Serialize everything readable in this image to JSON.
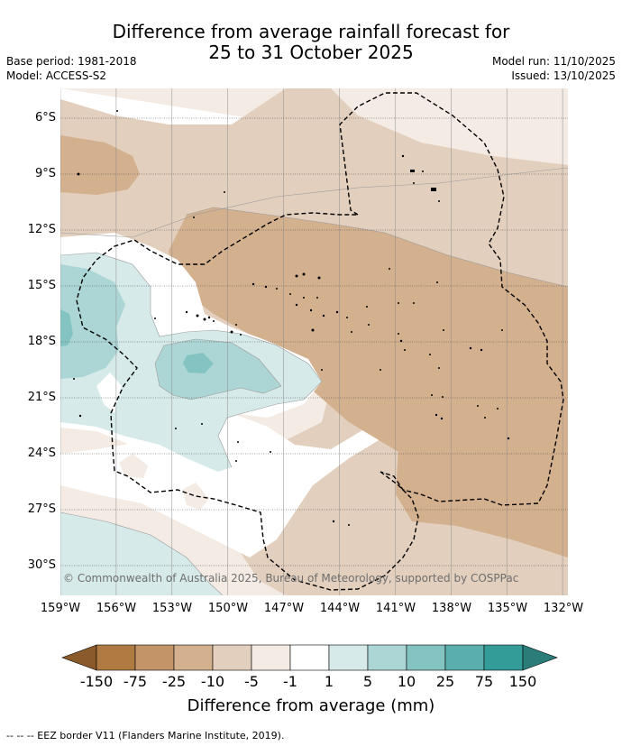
{
  "title_line1": "Difference from average rainfall forecast for",
  "title_line2": "25 to 31 October 2025",
  "base_period": "Base period: 1981-2018",
  "model": "Model: ACCESS-S2",
  "model_run": "Model run: 11/10/2025",
  "issued": "Issued: 13/10/2025",
  "lat_ticks": [
    "6°S",
    "9°S",
    "12°S",
    "15°S",
    "18°S",
    "21°S",
    "24°S",
    "27°S",
    "30°S"
  ],
  "lon_ticks": [
    "159°W",
    "156°W",
    "153°W",
    "150°W",
    "147°W",
    "144°W",
    "141°W",
    "138°W",
    "135°W",
    "132°W"
  ],
  "copyright": "© Commonwealth of Australia 2025, Bureau of Meteorology, supported by COSPPac",
  "colorbar": {
    "labels": [
      "-150",
      "-75",
      "-25",
      "-10",
      "-5",
      "-1",
      "1",
      "5",
      "10",
      "25",
      "75",
      "150"
    ],
    "colors": [
      "#8b5a2b",
      "#b07a43",
      "#c29468",
      "#d3b08e",
      "#e3cfbd",
      "#f3ebe4",
      "#ffffff",
      "#d5eae9",
      "#acd6d5",
      "#83c4c2",
      "#5aafac",
      "#339c98",
      "#2a7d79"
    ],
    "title": "Difference from average (mm)"
  },
  "footnote": "--  --  -- EEZ border V11 (Flanders Marine Institute, 2019)."
}
